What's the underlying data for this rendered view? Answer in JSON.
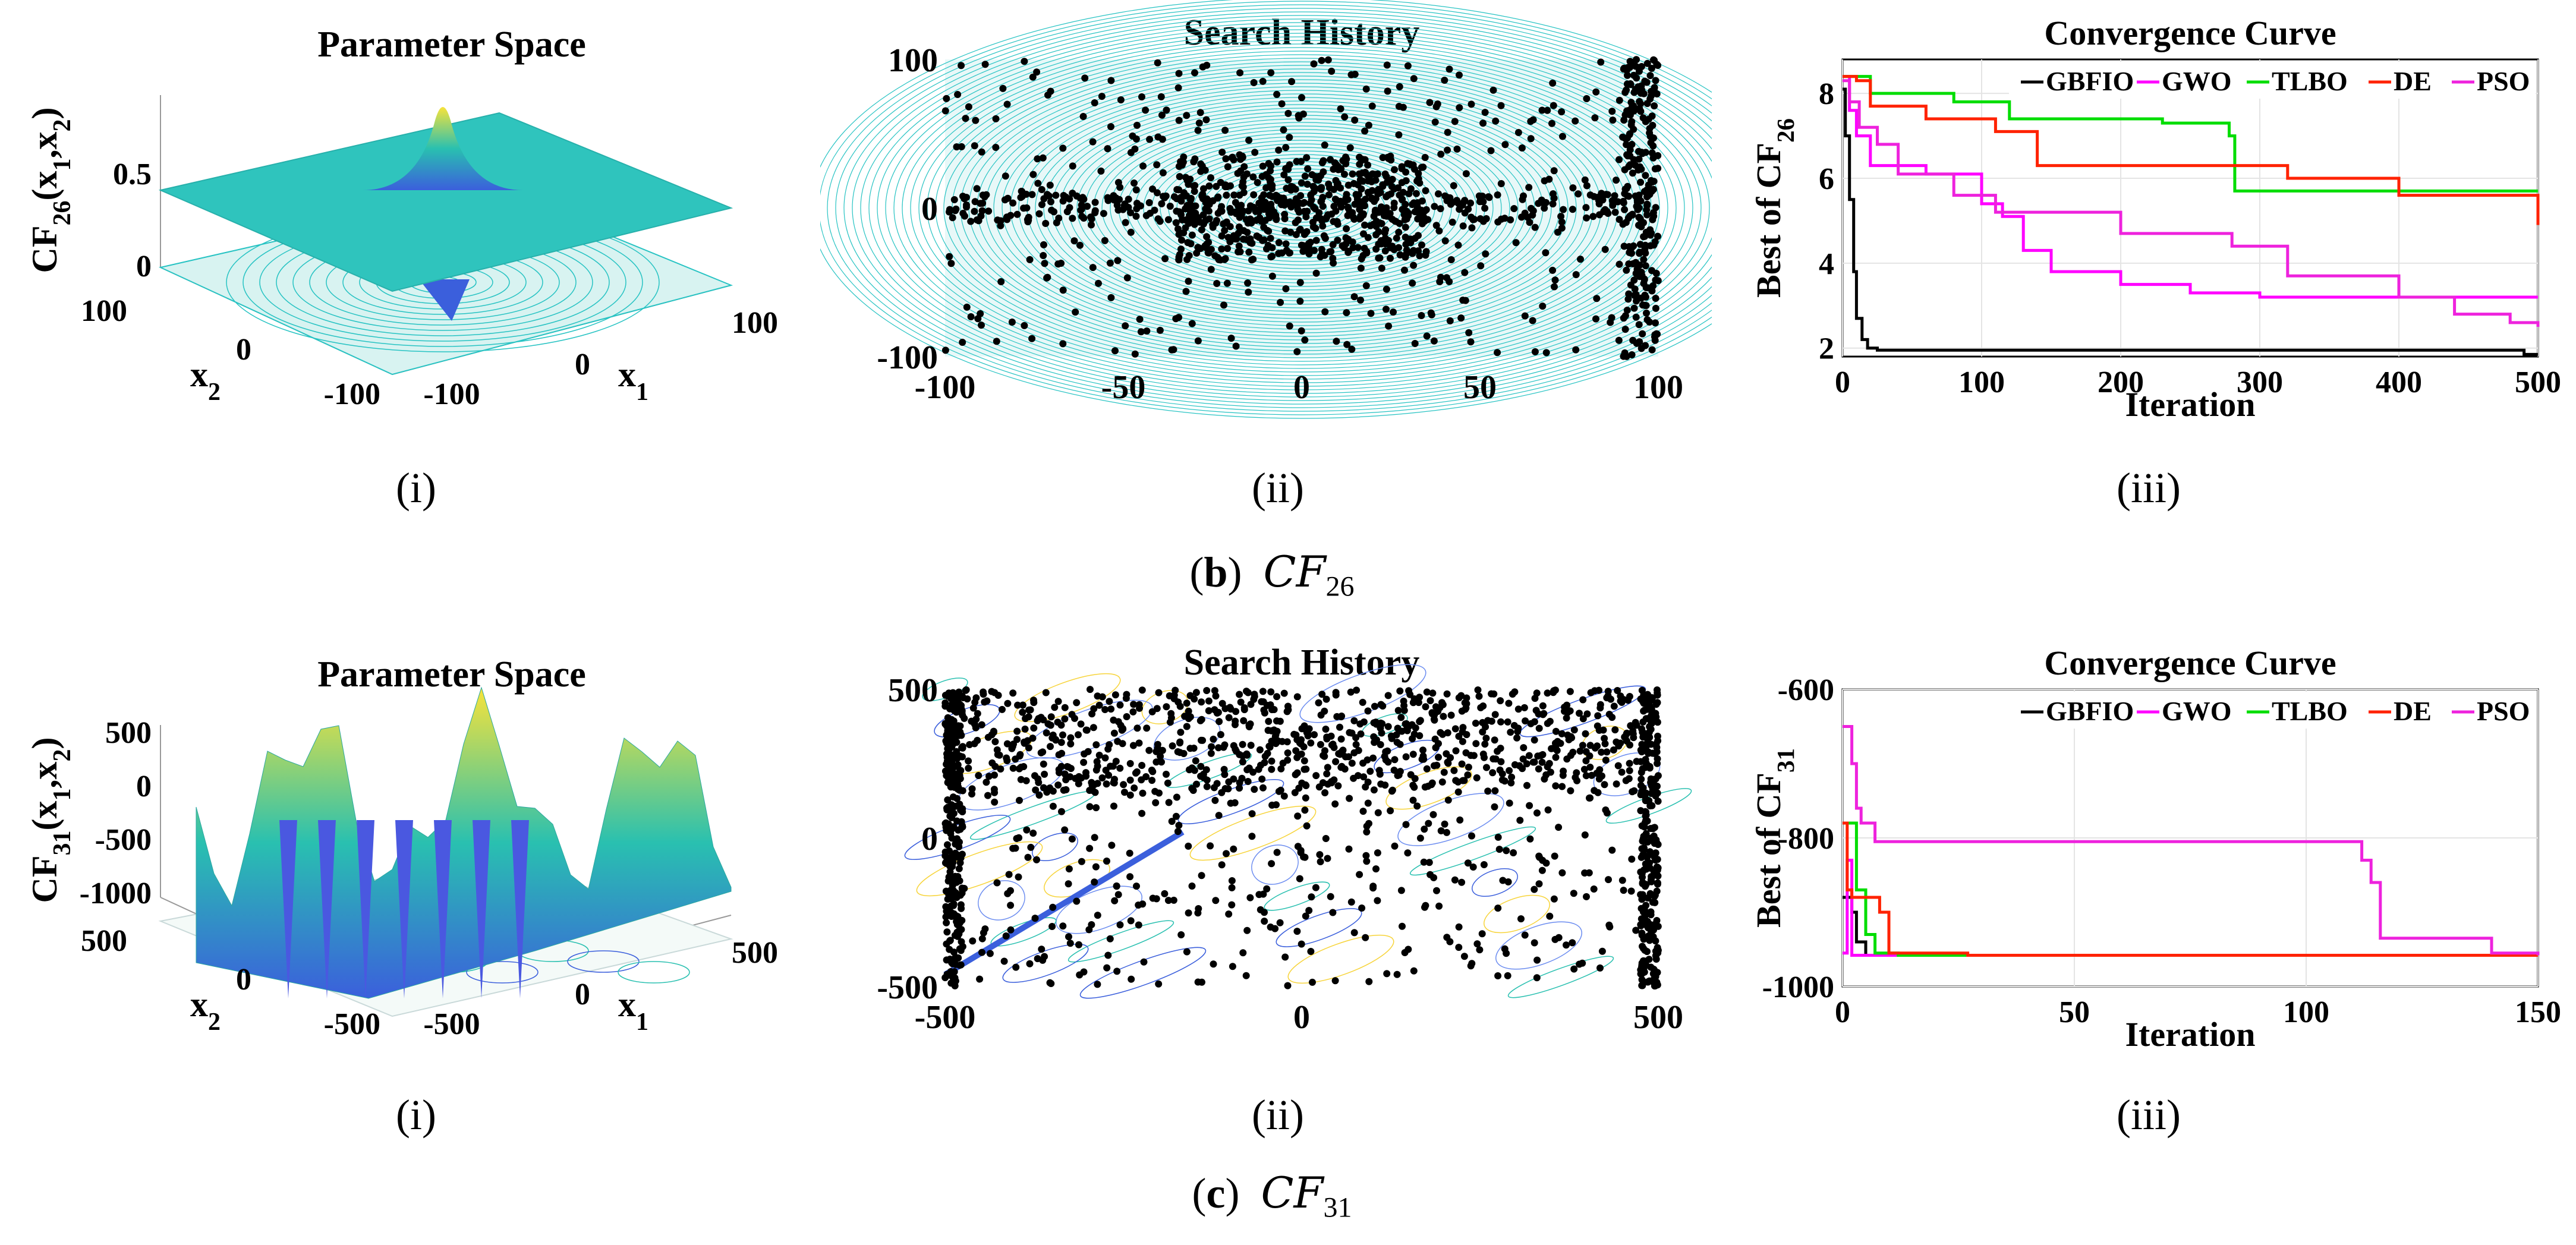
{
  "rows": [
    {
      "id": "cf26",
      "caption_letter": "b",
      "caption_func": "CF",
      "caption_sub": "26",
      "sublabels": [
        "(i)",
        "(ii)",
        "(iii)"
      ],
      "param": {
        "title": "Parameter Space",
        "zlabel": "CF",
        "zlabel_sub": "26",
        "zlabel_args": "(x",
        "zticks": [
          "0",
          "0.5"
        ],
        "x2label": "x",
        "x2sub": "2",
        "x1label": "x",
        "x1sub": "1",
        "x2ticks": [
          "100",
          "0",
          "-100"
        ],
        "x1ticks": [
          "-100",
          "0",
          "100"
        ]
      },
      "history": {
        "title": "Search History",
        "xticks": [
          "-100",
          "-50",
          "0",
          "50",
          "100"
        ],
        "yticks": [
          "100",
          "0",
          "-100"
        ],
        "range": [
          -100,
          100
        ],
        "seed": 7,
        "n_points": 1400
      },
      "convergence": {
        "title": "Convergence Curve",
        "xlabel": "Iteration",
        "ylabel": "Best of CF",
        "ylabel_sub": "26",
        "xticks": [
          "0",
          "100",
          "200",
          "300",
          "400",
          "500"
        ],
        "yticks": [
          "2",
          "4",
          "6",
          "8"
        ],
        "xlim": [
          0,
          500
        ],
        "ylim": [
          1.8,
          8.8
        ]
      }
    },
    {
      "id": "cf31",
      "caption_letter": "c",
      "caption_func": "CF",
      "caption_sub": "31",
      "sublabels": [
        "(i)",
        "(ii)",
        "(iii)"
      ],
      "param": {
        "title": "Parameter Space",
        "zlabel": "CF",
        "zlabel_sub": "31",
        "zlabel_args": "(x",
        "zticks": [
          "500",
          "0",
          "-500",
          "-1000"
        ],
        "x2label": "x",
        "x2sub": "2",
        "x1label": "x",
        "x1sub": "1",
        "x2ticks": [
          "500",
          "0",
          "-500"
        ],
        "x1ticks": [
          "-500",
          "0",
          "500"
        ]
      },
      "history": {
        "title": "Search History",
        "xticks": [
          "-500",
          "0",
          "500"
        ],
        "yticks": [
          "500",
          "0",
          "-500"
        ],
        "range": [
          -500,
          500
        ],
        "seed": 19,
        "n_points": 1700
      },
      "convergence": {
        "title": "Convergence Curve",
        "xlabel": "Iteration",
        "ylabel": "Best of CF",
        "ylabel_sub": "31",
        "xticks": [
          "0",
          "50",
          "100",
          "150"
        ],
        "yticks": [
          "-600",
          "-800",
          "-1000"
        ],
        "xlim": [
          0,
          150
        ],
        "ylim": [
          -1000,
          -600
        ]
      }
    }
  ],
  "chart_data": [
    {
      "type": "line",
      "title": "Convergence Curve",
      "xlabel": "Iteration",
      "ylabel": "Best of CF26",
      "xlim": [
        0,
        500
      ],
      "ylim": [
        1.8,
        8.8
      ],
      "legend": "top",
      "series": [
        {
          "name": "GBFIO",
          "color": "#000000",
          "x": [
            0,
            2,
            5,
            8,
            10,
            14,
            18,
            25,
            100,
            300,
            490,
            500
          ],
          "y": [
            8.1,
            7.0,
            5.5,
            3.8,
            2.7,
            2.2,
            2.0,
            1.95,
            1.95,
            1.95,
            1.85,
            1.85
          ]
        },
        {
          "name": "GWO",
          "color": "#ff00ff",
          "x": [
            0,
            5,
            10,
            20,
            60,
            100,
            115,
            130,
            150,
            200,
            250,
            300,
            400,
            450,
            500
          ],
          "y": [
            8.4,
            7.6,
            7.0,
            6.3,
            6.1,
            5.4,
            5.1,
            4.3,
            3.8,
            3.5,
            3.3,
            3.2,
            3.2,
            3.2,
            3.2
          ]
        },
        {
          "name": "TLBO",
          "color": "#00dd00",
          "x": [
            0,
            10,
            20,
            80,
            120,
            230,
            278,
            282,
            400,
            500
          ],
          "y": [
            8.4,
            8.4,
            8.0,
            7.8,
            7.4,
            7.3,
            7.0,
            5.7,
            5.7,
            5.7
          ]
        },
        {
          "name": "DE",
          "color": "#ff2200",
          "x": [
            0,
            10,
            20,
            60,
            110,
            140,
            320,
            400,
            490,
            500
          ],
          "y": [
            8.4,
            8.3,
            7.7,
            7.4,
            7.1,
            6.3,
            6.0,
            5.6,
            5.6,
            4.9
          ]
        },
        {
          "name": "PSO",
          "color": "#ee22dd",
          "x": [
            0,
            5,
            12,
            25,
            40,
            80,
            110,
            200,
            280,
            320,
            400,
            440,
            480,
            500
          ],
          "y": [
            8.3,
            7.8,
            7.2,
            6.8,
            6.1,
            5.6,
            5.2,
            4.7,
            4.4,
            3.7,
            3.2,
            2.8,
            2.6,
            2.5
          ]
        }
      ]
    },
    {
      "type": "line",
      "title": "Convergence Curve",
      "xlabel": "Iteration",
      "ylabel": "Best of CF31",
      "xlim": [
        0,
        150
      ],
      "ylim": [
        -1000,
        -600
      ],
      "legend": "top",
      "series": [
        {
          "name": "GBFIO",
          "color": "#000000",
          "x": [
            0,
            1,
            2,
            3,
            5,
            8,
            150
          ],
          "y": [
            -880,
            -880,
            -900,
            -940,
            -958,
            -958,
            -958
          ]
        },
        {
          "name": "GWO",
          "color": "#ff00ff",
          "x": [
            0,
            1,
            2,
            4,
            150
          ],
          "y": [
            -955,
            -830,
            -958,
            -958,
            -958
          ]
        },
        {
          "name": "TLBO",
          "color": "#00dd00",
          "x": [
            0,
            2,
            3,
            5,
            7,
            12,
            150
          ],
          "y": [
            -780,
            -780,
            -870,
            -930,
            -955,
            -958,
            -958
          ]
        },
        {
          "name": "DE",
          "color": "#ff2200",
          "x": [
            0,
            1,
            2,
            5,
            8,
            10,
            27,
            150
          ],
          "y": [
            -780,
            -870,
            -880,
            -880,
            -900,
            -955,
            -958,
            -958
          ]
        },
        {
          "name": "PSO",
          "color": "#ee22dd",
          "x": [
            0,
            1,
            2,
            3,
            4,
            7,
            110,
            112,
            114,
            116,
            140,
            150
          ],
          "y": [
            -650,
            -650,
            -700,
            -760,
            -780,
            -805,
            -805,
            -830,
            -860,
            -935,
            -955,
            -958
          ]
        }
      ]
    }
  ]
}
